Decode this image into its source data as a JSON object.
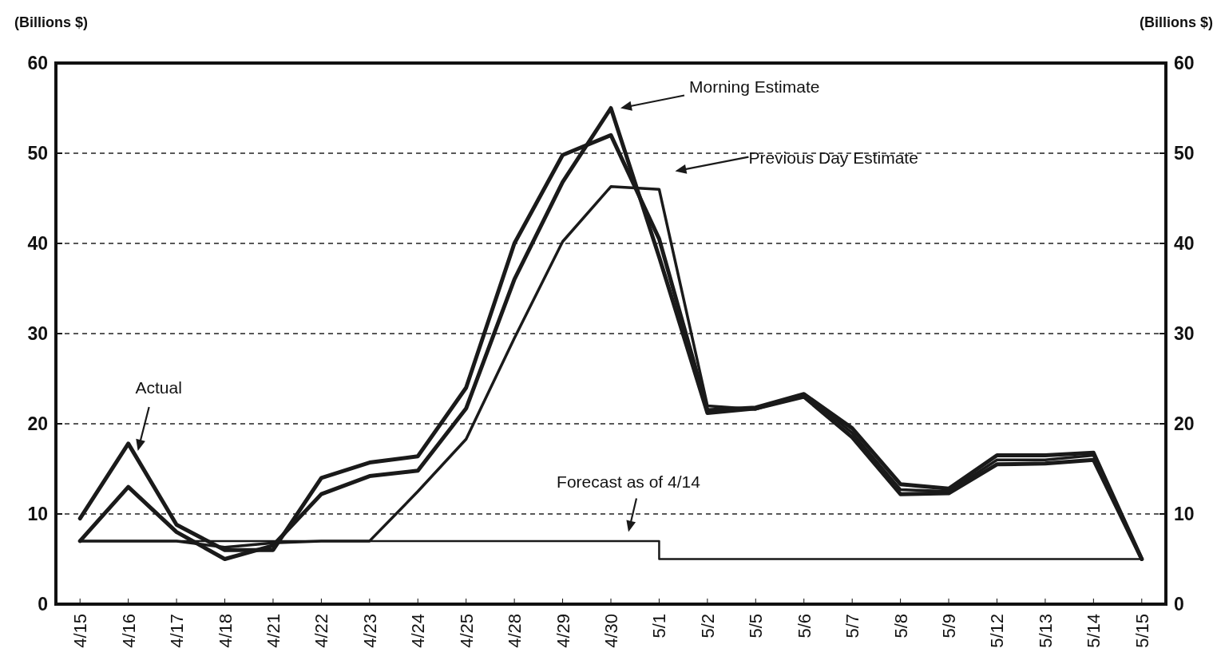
{
  "chart_data": {
    "type": "line",
    "ylabel": "(Billions $)",
    "y2label": "(Billions $)",
    "categories": [
      "4/15",
      "4/16",
      "4/17",
      "4/18",
      "4/21",
      "4/22",
      "4/23",
      "4/24",
      "4/25",
      "4/28",
      "4/29",
      "4/30",
      "5/1",
      "5/2",
      "5/5",
      "5/6",
      "5/7",
      "5/8",
      "5/9",
      "5/12",
      "5/13",
      "5/14",
      "5/15"
    ],
    "ylim": [
      0,
      60
    ],
    "yticks": [
      0,
      10,
      20,
      30,
      40,
      50,
      60
    ],
    "y2lim": [
      0,
      60
    ],
    "y2ticks": [
      0,
      10,
      20,
      30,
      40,
      50,
      60
    ],
    "grid": "y",
    "legend": false,
    "line_style": "solid",
    "annotations": [
      "Actual",
      "Morning Estimate",
      "Previous Day Estimate",
      "Forecast as of 4/14"
    ],
    "series": [
      {
        "color": "#1a1a1a",
        "values": [
          9.5,
          17.8,
          8.8,
          6,
          6,
          14,
          15.7,
          16.4,
          24,
          40,
          49.8,
          52,
          40.5,
          21.5,
          21.8,
          23.3,
          19.5,
          13.3,
          12.8,
          16.5,
          16.5,
          16.8,
          5
        ]
      },
      {
        "color": "#1a1a1a",
        "values": [
          7,
          13,
          8,
          5,
          6.5,
          12.2,
          14.2,
          14.8,
          21.7,
          36,
          46.8,
          55,
          38.5,
          21.2,
          21.7,
          23,
          18.5,
          12.2,
          12.3,
          15.5,
          15.6,
          16,
          5
        ]
      },
      {
        "color": "#1a1a1a",
        "values": [
          7,
          7,
          7,
          6.3,
          6.8,
          7,
          7,
          12.5,
          18.3,
          29.5,
          40.2,
          46.3,
          46,
          22,
          21.6,
          23.3,
          19,
          12.7,
          12.5,
          16,
          16,
          16.5,
          5
        ]
      },
      {
        "type": "step",
        "color": "#1a1a1a",
        "values": [
          7,
          7,
          7,
          7,
          7,
          7,
          7,
          7,
          7,
          7,
          7,
          7,
          5,
          5,
          5,
          5,
          5,
          5,
          5,
          5,
          5,
          5,
          5
        ]
      }
    ]
  }
}
